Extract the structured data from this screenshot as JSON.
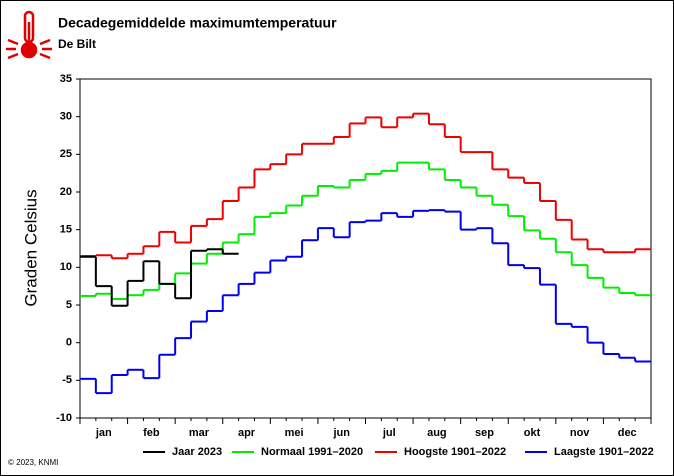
{
  "chart_data": {
    "type": "step-line",
    "title": "Decadegemiddelde maximumtemperatuur",
    "subtitle": "De Bilt",
    "y_label": "Graden Celsius",
    "credit": "© 2023, KNMI",
    "categories": [
      null,
      "jan",
      null,
      null,
      "feb",
      null,
      null,
      "mar",
      null,
      null,
      "apr",
      null,
      null,
      "mei",
      null,
      null,
      "jun",
      null,
      null,
      "jul",
      null,
      null,
      "aug",
      null,
      null,
      "sep",
      null,
      null,
      "okt",
      null,
      null,
      "nov",
      null,
      null,
      "dec",
      null
    ],
    "ylim": [
      -10,
      35
    ],
    "yticks": [
      -10,
      -5,
      0,
      5,
      10,
      15,
      20,
      25,
      30,
      35
    ],
    "series": [
      {
        "name": "Jaar 2023",
        "color": "#000000",
        "values": [
          11.4,
          7.5,
          4.9,
          8.2,
          10.8,
          7.8,
          5.9,
          12.2,
          12.4,
          11.8,
          null,
          null,
          null,
          null,
          null,
          null,
          null,
          null,
          null,
          null,
          null,
          null,
          null,
          null,
          null,
          null,
          null,
          null,
          null,
          null,
          null,
          null,
          null,
          null,
          null,
          null
        ]
      },
      {
        "name": "Normaal 1991–2020",
        "color": "#00ee00",
        "values": [
          6.2,
          6.5,
          5.8,
          6.3,
          7.0,
          7.8,
          9.2,
          10.5,
          11.8,
          13.3,
          14.4,
          16.7,
          17.2,
          18.2,
          19.5,
          20.8,
          20.6,
          21.6,
          22.4,
          22.8,
          23.9,
          23.9,
          23.0,
          21.6,
          20.6,
          19.5,
          18.3,
          16.8,
          14.9,
          13.8,
          12.0,
          10.3,
          8.6,
          7.3,
          6.6,
          6.3
        ]
      },
      {
        "name": "Hoogste 1901–2022",
        "color": "#ee0000",
        "values": [
          11.5,
          11.6,
          11.2,
          11.8,
          12.8,
          14.7,
          13.3,
          15.5,
          16.4,
          18.8,
          20.6,
          23.0,
          23.7,
          25.0,
          26.4,
          26.4,
          27.3,
          29.1,
          29.9,
          28.6,
          29.9,
          30.4,
          29.0,
          27.3,
          25.3,
          25.3,
          23.0,
          21.9,
          21.2,
          18.8,
          16.3,
          13.7,
          12.4,
          12.0,
          12.0,
          12.4
        ]
      },
      {
        "name": "Laagste 1901–2022",
        "color": "#0000ee",
        "values": [
          -4.8,
          -6.7,
          -4.3,
          -3.6,
          -4.7,
          -1.6,
          0.6,
          2.8,
          4.2,
          6.3,
          7.8,
          9.3,
          10.9,
          11.4,
          13.6,
          15.2,
          14.0,
          16.0,
          16.2,
          17.2,
          16.7,
          17.5,
          17.6,
          17.4,
          15.0,
          15.2,
          13.2,
          10.3,
          9.9,
          7.7,
          2.5,
          2.1,
          0.0,
          -1.5,
          -2.0,
          -2.5
        ]
      }
    ]
  }
}
